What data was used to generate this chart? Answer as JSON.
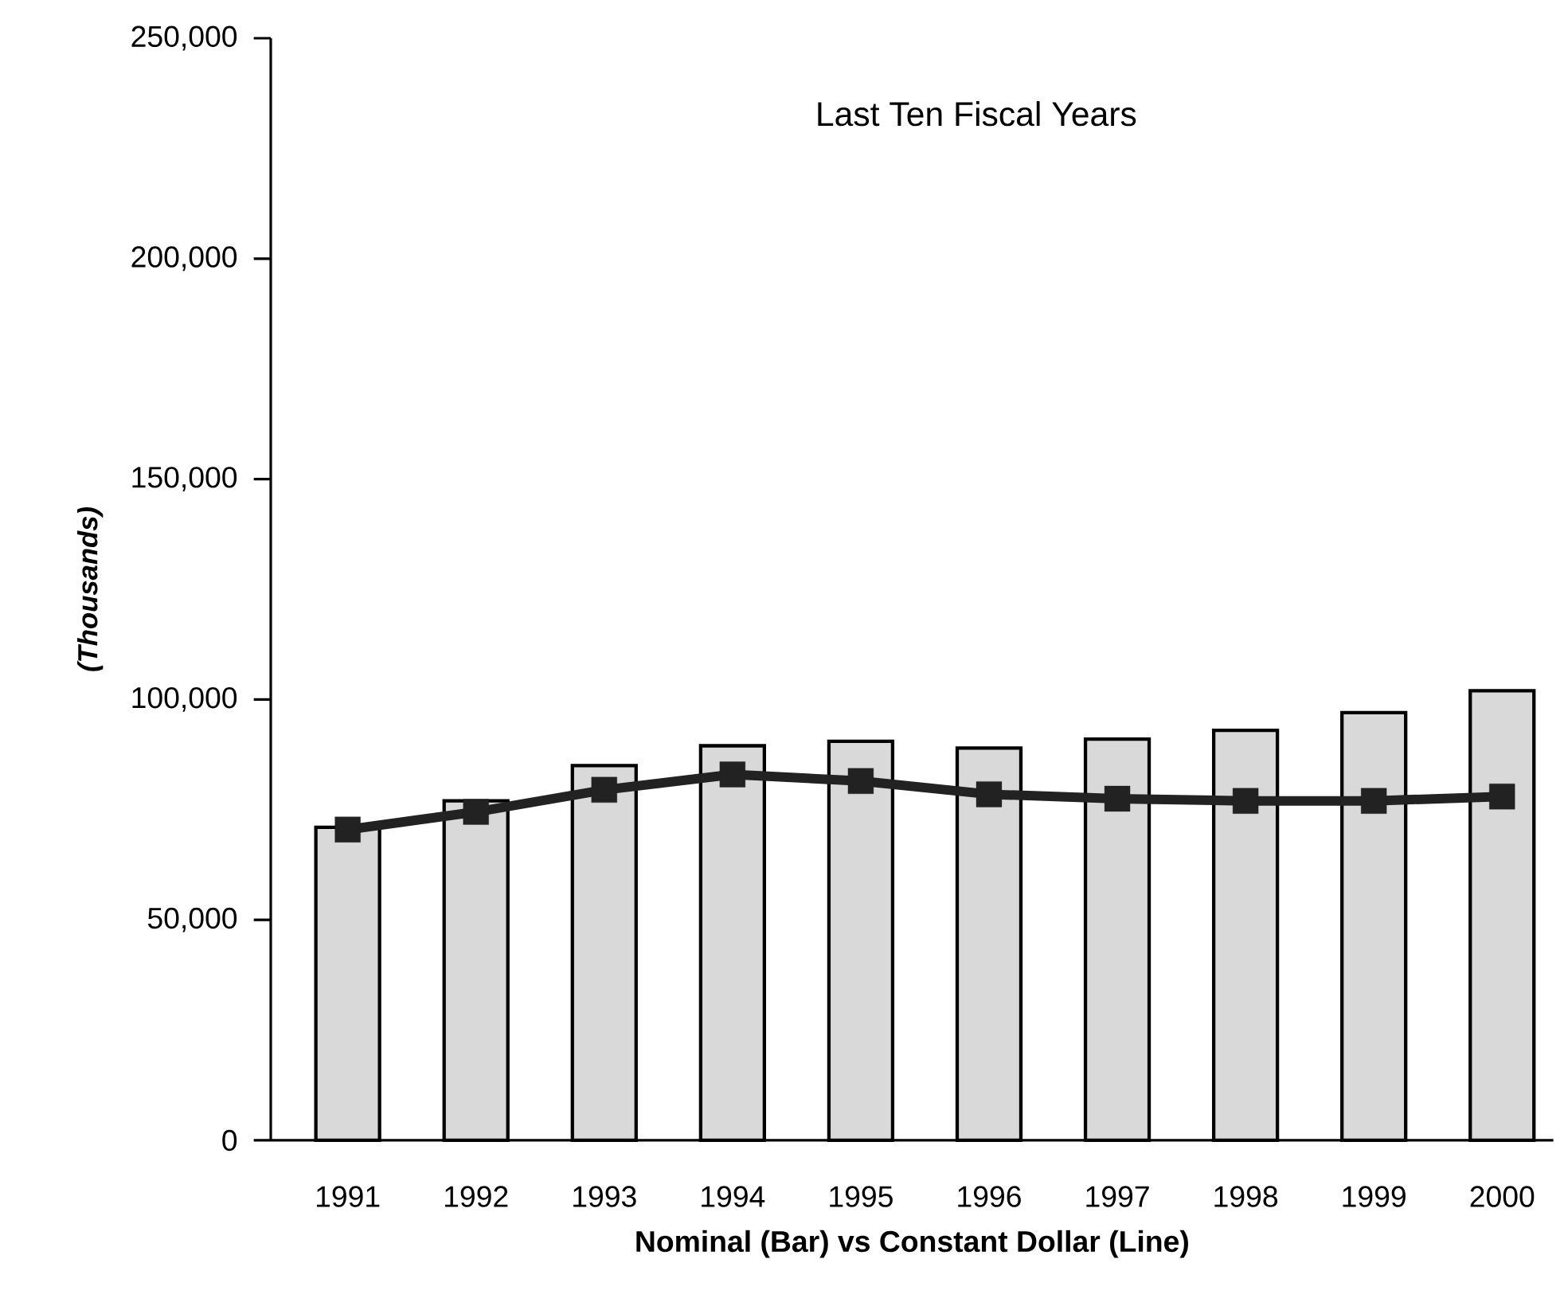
{
  "chart_data": {
    "type": "bar",
    "title": "Last Ten Fiscal Years",
    "xlabel": "Nominal (Bar) vs Constant Dollar (Line)",
    "ylabel": "(Thousands)",
    "categories": [
      "1991",
      "1992",
      "1993",
      "1994",
      "1995",
      "1996",
      "1997",
      "1998",
      "1999",
      "2000"
    ],
    "series": [
      {
        "color": "#d9d9d9",
        "values": [
          71000,
          77000,
          85000,
          89500,
          90500,
          89000,
          91000,
          93000,
          97000,
          102000
        ]
      },
      {
        "type": "line",
        "color": "#222222",
        "values": [
          70500,
          74500,
          79500,
          83000,
          81500,
          78500,
          77500,
          77000,
          77000,
          78000
        ]
      }
    ],
    "marker": "square",
    "line_style": "solid",
    "ylim": [
      0,
      250000
    ],
    "yticks": [
      {
        "value": 0,
        "label": "0"
      },
      {
        "value": 50000,
        "label": "50,000"
      },
      {
        "value": 100000,
        "label": "100,000"
      },
      {
        "value": 150000,
        "label": "150,000"
      },
      {
        "value": 200000,
        "label": "200,000"
      },
      {
        "value": 250000,
        "label": "250,000"
      }
    ]
  }
}
